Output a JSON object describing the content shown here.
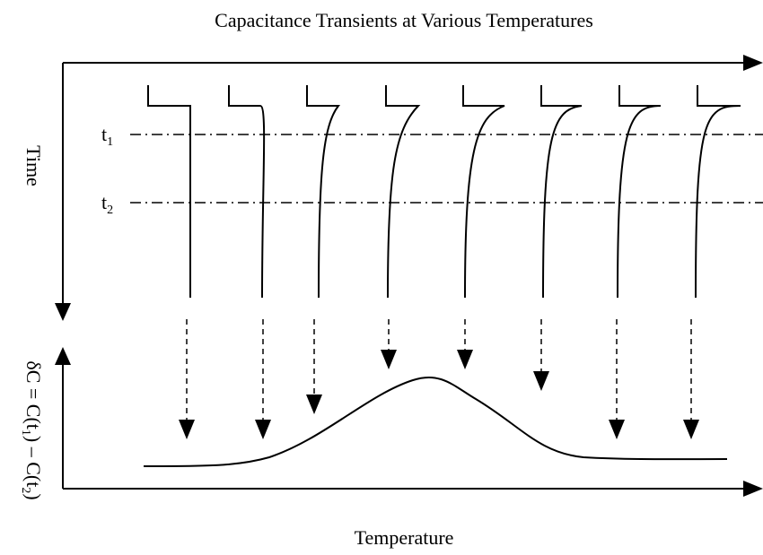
{
  "title": "Capacitance Transients at Various Temperatures",
  "time_axis": {
    "label": "Time"
  },
  "t1_label": [
    {
      "text": "t"
    },
    {
      "text": "1",
      "sub": true
    }
  ],
  "t2_label": [
    {
      "text": "t"
    },
    {
      "text": "2",
      "sub": true
    }
  ],
  "signal_axis": {
    "label": [
      {
        "text": "δC = C(t"
      },
      {
        "text": "1",
        "sub": true
      },
      {
        "text": ") – C(t"
      },
      {
        "text": "2",
        "sub": true
      },
      {
        "text": ")"
      }
    ]
  },
  "temperature_axis": {
    "label": "Temperature"
  }
}
